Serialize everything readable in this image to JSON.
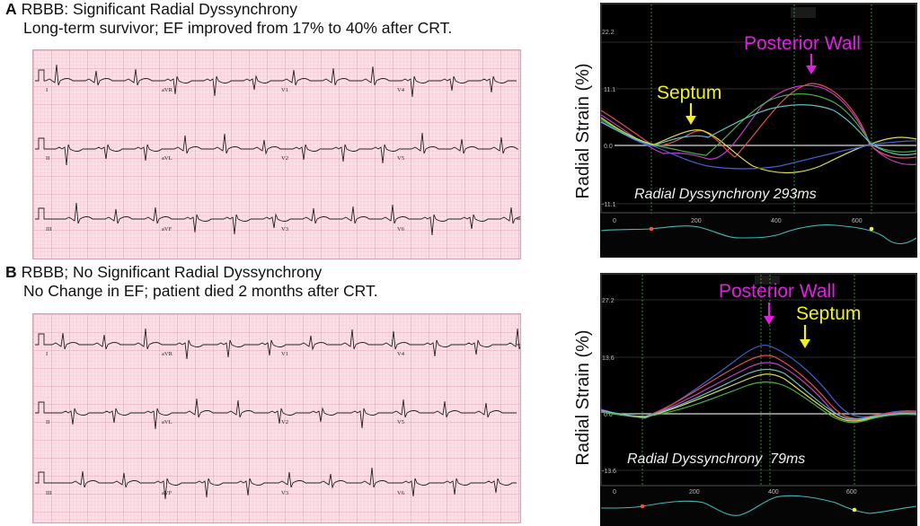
{
  "panel_a": {
    "letter": "A",
    "title": "RBBB: Significant Radial Dyssynchrony",
    "subtitle": "Long-term survivor; EF improved from 17% to 40% after CRT.",
    "ecg_leads": [
      "I",
      "aVR",
      "V1",
      "V4",
      "II",
      "aVL",
      "V2",
      "V5",
      "III",
      "aVF",
      "V3",
      "V6"
    ],
    "strain": {
      "ylabel": "Radial Strain (%)",
      "yticks": [
        "22.2",
        "11.1",
        "0.0",
        "-11.1"
      ],
      "xticks": [
        "0",
        "200",
        "400",
        "600"
      ],
      "annotation_posterior": "Posterior Wall",
      "annotation_septum": "Septum",
      "dyssynchrony_text": "Radial Dyssynchrony 293ms",
      "colors": {
        "posterior": "#e020e0",
        "septum": "#f0f020"
      }
    }
  },
  "panel_b": {
    "letter": "B",
    "title": "RBBB; No Significant Radial Dyssynchrony",
    "subtitle": "No Change in EF; patient died 2 months after CRT.",
    "ecg_leads": [
      "I",
      "aVR",
      "V1",
      "V4",
      "II",
      "aVL",
      "V2",
      "V5",
      "III",
      "aVF",
      "V3",
      "V6"
    ],
    "strain": {
      "ylabel": "Radial Strain (%)",
      "yticks": [
        "27.2",
        "13.6",
        "0.0",
        "-13.6"
      ],
      "xticks": [
        "0",
        "200",
        "400",
        "600"
      ],
      "annotation_posterior": "Posterior Wall",
      "annotation_septum": "Septum",
      "dyssynchrony_text": "Radial Dyssynchrony  79ms",
      "colors": {
        "posterior": "#e020e0",
        "septum": "#f0f020"
      }
    }
  }
}
